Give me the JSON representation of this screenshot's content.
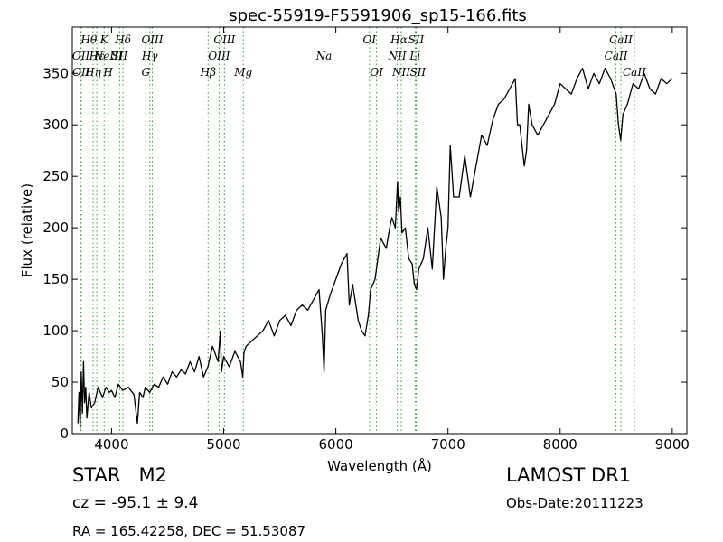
{
  "chart_data": {
    "type": "line",
    "title": "spec-55919-F5591906_sp15-166.fits",
    "xlabel": "Wavelength (Å)",
    "ylabel": "Flux (relative)",
    "xlim": [
      3650,
      9130
    ],
    "ylim": [
      0,
      395
    ],
    "xticks": [
      4000,
      5000,
      6000,
      7000,
      8000,
      9000
    ],
    "yticks": [
      0,
      50,
      100,
      150,
      200,
      250,
      300,
      350
    ],
    "grid": false,
    "line_color": "#000000",
    "marker_color": "#2ca02c",
    "series": [
      {
        "x": [
          3700,
          3710,
          3720,
          3730,
          3740,
          3750,
          3760,
          3770,
          3780,
          3800,
          3820,
          3850,
          3880,
          3900,
          3920,
          3950,
          3980,
          4000,
          4030,
          4060,
          4100,
          4150,
          4200,
          4230,
          4250,
          4280,
          4300,
          4340,
          4380,
          4420,
          4460,
          4500,
          4540,
          4580,
          4620,
          4660,
          4700,
          4740,
          4780,
          4820,
          4860,
          4900,
          4950,
          4970,
          4980,
          5000,
          5050,
          5100,
          5150,
          5170,
          5180,
          5200,
          5250,
          5300,
          5350,
          5400,
          5450,
          5500,
          5550,
          5600,
          5650,
          5700,
          5750,
          5800,
          5850,
          5880,
          5895,
          5910,
          5950,
          6000,
          6050,
          6100,
          6120,
          6150,
          6200,
          6230,
          6260,
          6290,
          6310,
          6350,
          6400,
          6450,
          6480,
          6500,
          6530,
          6550,
          6560,
          6575,
          6590,
          6620,
          6650,
          6680,
          6700,
          6720,
          6740,
          6780,
          6820,
          6860,
          6900,
          6940,
          6960,
          6980,
          7000,
          7020,
          7050,
          7100,
          7150,
          7200,
          7250,
          7300,
          7350,
          7400,
          7450,
          7500,
          7550,
          7600,
          7620,
          7640,
          7660,
          7680,
          7700,
          7720,
          7750,
          7800,
          7850,
          7900,
          7950,
          8000,
          8050,
          8100,
          8150,
          8200,
          8250,
          8300,
          8350,
          8400,
          8450,
          8500,
          8520,
          8540,
          8560,
          8600,
          8650,
          8700,
          8750,
          8800,
          8850,
          8900,
          8950,
          9000
        ],
        "y": [
          10,
          40,
          5,
          60,
          20,
          70,
          30,
          45,
          15,
          40,
          25,
          30,
          45,
          40,
          35,
          45,
          40,
          42,
          35,
          48,
          42,
          45,
          38,
          10,
          40,
          35,
          45,
          40,
          48,
          45,
          55,
          48,
          60,
          55,
          62,
          58,
          70,
          60,
          75,
          55,
          65,
          85,
          70,
          100,
          60,
          75,
          65,
          80,
          70,
          55,
          78,
          85,
          90,
          95,
          100,
          110,
          95,
          110,
          115,
          105,
          120,
          125,
          120,
          130,
          140,
          95,
          60,
          120,
          135,
          150,
          165,
          175,
          125,
          145,
          110,
          100,
          95,
          115,
          140,
          150,
          190,
          180,
          200,
          210,
          200,
          245,
          215,
          230,
          195,
          200,
          170,
          165,
          145,
          140,
          160,
          170,
          200,
          160,
          240,
          210,
          150,
          180,
          200,
          280,
          230,
          230,
          270,
          230,
          260,
          290,
          280,
          305,
          320,
          325,
          335,
          345,
          300,
          300,
          280,
          260,
          275,
          320,
          300,
          290,
          300,
          310,
          320,
          340,
          335,
          330,
          345,
          355,
          335,
          350,
          340,
          355,
          345,
          330,
          300,
          285,
          310,
          320,
          340,
          335,
          350,
          335,
          330,
          345,
          340,
          345
        ]
      }
    ],
    "lines": [
      {
        "wl": 3727,
        "label": "OII",
        "row": 2
      },
      {
        "wl": 3729,
        "label": "OII",
        "row": 3
      },
      {
        "wl": 3798,
        "label": "Hθ",
        "row": 1
      },
      {
        "wl": 3835,
        "label": "Hη",
        "row": 3
      },
      {
        "wl": 3869,
        "label": "Hε",
        "row": 2
      },
      {
        "wl": 3934,
        "label": "K",
        "row": 1
      },
      {
        "wl": 3969,
        "label": "H",
        "row": 3
      },
      {
        "wl": 3970,
        "label": "NeIII",
        "row": 2
      },
      {
        "wl": 4072,
        "label": "SII",
        "row": 2
      },
      {
        "wl": 4102,
        "label": "Hδ",
        "row": 1
      },
      {
        "wl": 4305,
        "label": "G",
        "row": 3
      },
      {
        "wl": 4341,
        "label": "Hγ",
        "row": 2
      },
      {
        "wl": 4363,
        "label": "OIII",
        "row": 1
      },
      {
        "wl": 4861,
        "label": "Hβ",
        "row": 3
      },
      {
        "wl": 4959,
        "label": "OIII",
        "row": 2
      },
      {
        "wl": 5007,
        "label": "OIII",
        "row": 1
      },
      {
        "wl": 5175,
        "label": "Mg",
        "row": 3
      },
      {
        "wl": 5894,
        "label": "Na",
        "row": 2
      },
      {
        "wl": 6300,
        "label": "OI",
        "row": 1
      },
      {
        "wl": 6363,
        "label": "OI",
        "row": 3
      },
      {
        "wl": 6548,
        "label": "NII",
        "row": 2
      },
      {
        "wl": 6563,
        "label": "Hα",
        "row": 1
      },
      {
        "wl": 6583,
        "label": "NII",
        "row": 3
      },
      {
        "wl": 6707,
        "label": "Li",
        "row": 2
      },
      {
        "wl": 6716,
        "label": "SII",
        "row": 1
      },
      {
        "wl": 6731,
        "label": "SII",
        "row": 3
      },
      {
        "wl": 8498,
        "label": "CaII",
        "row": 2
      },
      {
        "wl": 8542,
        "label": "CaII",
        "row": 1
      },
      {
        "wl": 8662,
        "label": "CaII",
        "row": 3
      }
    ]
  },
  "info": {
    "class_label": "STAR   M2",
    "cz": "cz = -95.1 ± 9.4",
    "radec": "RA = 165.42258, DEC = 51.53087",
    "survey": "LAMOST DR1",
    "obs_date": "Obs-Date:20111223"
  }
}
